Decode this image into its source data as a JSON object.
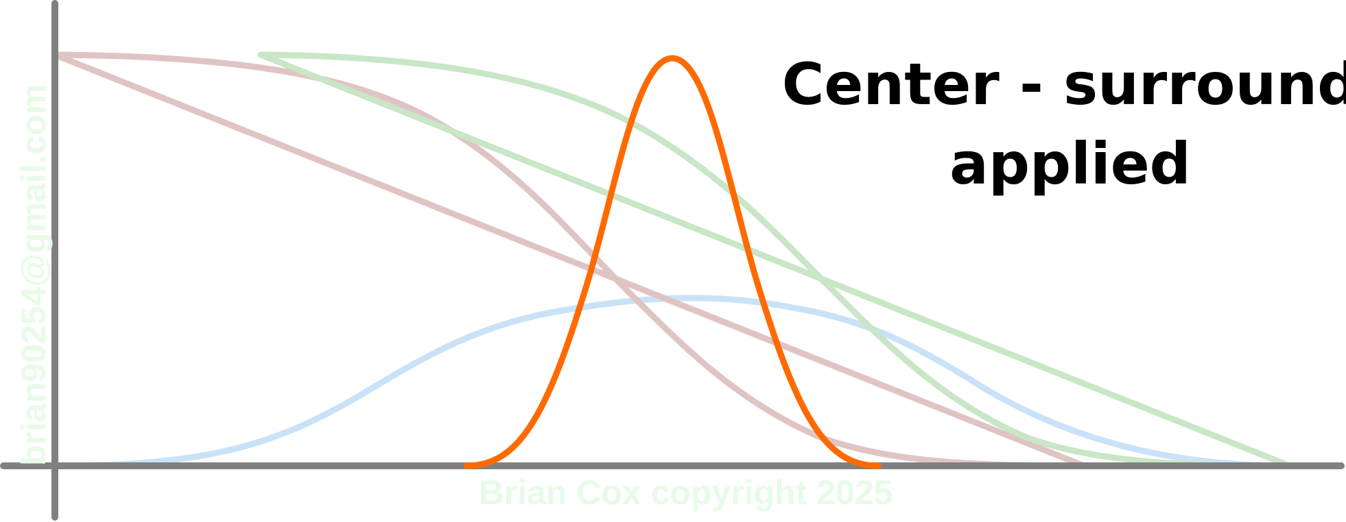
{
  "title": {
    "line1": "Center - surround",
    "line2": "applied"
  },
  "watermarks": {
    "side": "brian90254@gmail.com",
    "bottom": "Brian Cox copyright 2025"
  },
  "colors": {
    "axis": "#808080",
    "center_peak": "#ff6a00",
    "broad_bump": "#c9e2f8",
    "red_curve": "#e0c4c4",
    "green_curve": "#c9e6c6"
  }
}
